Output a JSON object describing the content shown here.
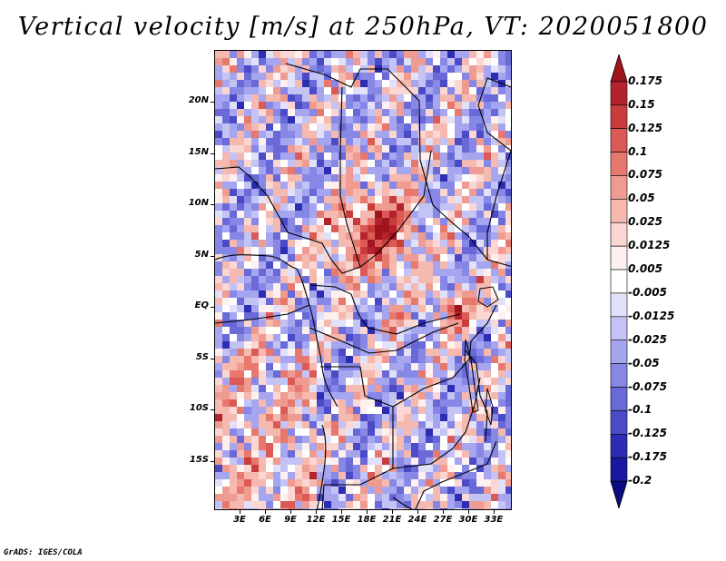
{
  "title": "Vertical velocity [m/s] at 250hPa, VT: 2020051800",
  "credit": "GrADS: IGES/COLA",
  "map": {
    "region": "Central Africa",
    "lon_range": [
      0,
      35
    ],
    "lat_range": [
      -20,
      25
    ],
    "lat_labels": [
      "20N",
      "15N",
      "10N",
      "5N",
      "EQ",
      "5S",
      "10S",
      "15S"
    ],
    "lon_labels": [
      "3E",
      "6E",
      "9E",
      "12E",
      "15E",
      "18E",
      "21E",
      "24E",
      "27E",
      "30E",
      "33E"
    ]
  },
  "colorbar": {
    "labels": [
      "0.175",
      "0.15",
      "0.125",
      "0.1",
      "0.075",
      "0.05",
      "0.025",
      "0.0125",
      "0.005",
      "-0.005",
      "-0.0125",
      "-0.025",
      "-0.05",
      "-0.075",
      "-0.1",
      "-0.125",
      "-0.175",
      "-0.2"
    ],
    "colors": [
      "#a0141e",
      "#b4232d",
      "#c83c3c",
      "#dc5a55",
      "#e6786e",
      "#f09b91",
      "#f5b9af",
      "#fad7d2",
      "#fff0f0",
      "#ffffff",
      "#e1e1fa",
      "#c3c3f5",
      "#a5a5f0",
      "#8787e6",
      "#6969d7",
      "#4b4bc8",
      "#2d2db4",
      "#1919a0",
      "#0a0a82"
    ]
  }
}
